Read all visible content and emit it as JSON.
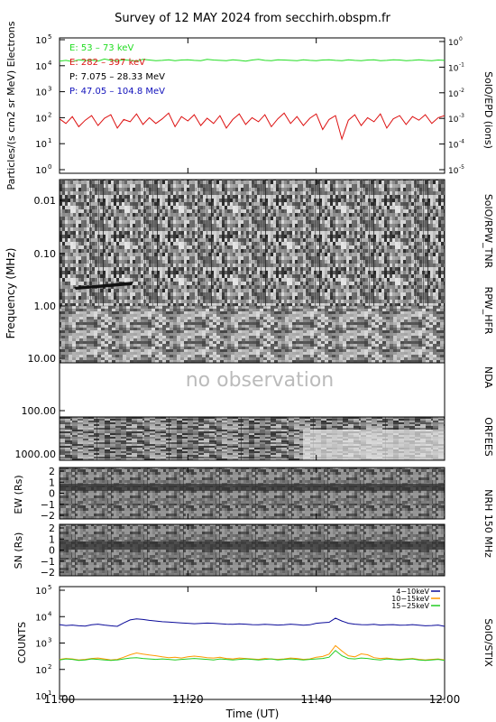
{
  "title": "Survey of 12 MAY 2024 from secchirh.obspm.fr",
  "colors": {
    "electrons_low": "#22dd22",
    "electrons_high": "#dd1111",
    "protons_low": "#000000",
    "protons_high": "#1111bb",
    "stix_low": "#0a0a99",
    "stix_mid": "#ff9900",
    "stix_high": "#22cc22",
    "no_obs": "#bbbbbb"
  },
  "x_axis": {
    "label": "Time (UT)",
    "ticks": [
      "11:00",
      "11:20",
      "11:40",
      "12:00"
    ],
    "range_min": [
      0,
      60
    ]
  },
  "chart_data": [
    {
      "type": "line",
      "panel": "epd",
      "ylabel": "Particles/(s cm2 sr MeV) Electrons",
      "right_label": "SolO/EPD (ions)",
      "ylim": [
        1,
        100000
      ],
      "log": true,
      "yticks_left": [
        "10",
        "10",
        "10",
        "10",
        "10",
        "10"
      ],
      "yticks_left_exp": [
        "0",
        "1",
        "2",
        "3",
        "4",
        "5"
      ],
      "yticks_right": [
        "10",
        "10",
        "10",
        "10",
        "10",
        "10",
        "10"
      ],
      "yticks_right_exp": [
        "-5",
        "-4",
        "-3",
        "-2",
        "-1",
        "0",
        ""
      ],
      "legend": [
        "E: 53 – 73 keV",
        "E: 282 – 397 keV",
        "P: 7.075 – 28.33 MeV",
        "P: 47.05 – 104.8 MeV"
      ],
      "series": [
        {
          "name": "E: 53 – 73 keV",
          "values": [
            15000,
            16000,
            14500,
            17000,
            15500,
            16500,
            15000,
            18000,
            16000,
            15500,
            17000,
            16000,
            15000,
            17500,
            16500,
            15500,
            16000,
            17000,
            15500,
            16500,
            17000,
            16000,
            15500,
            17500,
            16500,
            16000,
            15500,
            17000,
            16000,
            15000,
            16500,
            17500,
            16000,
            15500,
            17000,
            16500,
            16000,
            15500,
            17000,
            16000,
            15500,
            16500,
            17000,
            16000,
            15500,
            17000,
            16000,
            15500,
            16500,
            17000,
            15500,
            16000,
            17000,
            16500,
            15500,
            16000,
            17000,
            16000,
            15500,
            16500,
            16000
          ]
        },
        {
          "name": "E: 282 – 397 keV",
          "values": [
            90,
            60,
            110,
            45,
            80,
            120,
            50,
            95,
            130,
            40,
            85,
            70,
            140,
            55,
            100,
            60,
            90,
            150,
            45,
            110,
            75,
            130,
            50,
            95,
            60,
            120,
            40,
            85,
            140,
            55,
            100,
            70,
            130,
            45,
            90,
            150,
            60,
            110,
            50,
            95,
            140,
            35,
            85,
            120,
            15,
            80,
            130,
            50,
            100,
            70,
            140,
            40,
            90,
            120,
            55,
            110,
            80,
            130,
            60,
            100,
            120
          ]
        }
      ]
    },
    {
      "type": "heatmap",
      "panel": "rpw",
      "ylabel": "Frequency (MHz)",
      "right_labels": [
        "SolO/RPW_TNR",
        "RPW_HFR",
        "NDA",
        "ORFEES"
      ],
      "yticks": [
        "0.01",
        "0.10",
        "1.00",
        "10.00",
        "100.00",
        "1000.00"
      ],
      "annotation": "no observation"
    },
    {
      "type": "heatmap",
      "panel": "nrh_ew",
      "ylabel": "EW (Rs)",
      "yticks": [
        "2",
        "1",
        "0",
        "−1",
        "−2"
      ],
      "right_label": "NRH 150 MHz"
    },
    {
      "type": "heatmap",
      "panel": "nrh_sn",
      "ylabel": "SN (Rs)",
      "yticks": [
        "2",
        "1",
        "0",
        "−1",
        "−2"
      ]
    },
    {
      "type": "line",
      "panel": "stix",
      "ylabel": "COUNTS",
      "right_label": "SolO/STIX",
      "ylim": [
        10,
        100000
      ],
      "log": true,
      "yticks": [
        "10",
        "10",
        "10",
        "10",
        "10"
      ],
      "yticks_exp": [
        "1",
        "2",
        "3",
        "4",
        "5"
      ],
      "legend": [
        "4−10keV",
        "10−15keV",
        "15−25keV"
      ],
      "series": [
        {
          "name": "4−10keV",
          "values": [
            5000,
            4600,
            4800,
            4500,
            4400,
            4900,
            5200,
            4800,
            4500,
            4300,
            5800,
            7500,
            8200,
            7800,
            7200,
            6800,
            6400,
            6200,
            6000,
            5800,
            5600,
            5400,
            5500,
            5700,
            5600,
            5400,
            5200,
            5100,
            5300,
            5200,
            5000,
            4900,
            5100,
            5000,
            4800,
            4900,
            5200,
            5000,
            4700,
            4900,
            5600,
            5900,
            6100,
            8800,
            6800,
            5600,
            5200,
            5000,
            4900,
            5100,
            4800,
            4900,
            5000,
            4700,
            4800,
            5000,
            4700,
            4500,
            4600,
            4800,
            4300
          ]
        },
        {
          "name": "10−15keV",
          "values": [
            240,
            260,
            250,
            230,
            240,
            260,
            270,
            250,
            230,
            240,
            290,
            360,
            420,
            380,
            350,
            330,
            300,
            280,
            290,
            270,
            300,
            320,
            300,
            280,
            270,
            290,
            260,
            250,
            270,
            260,
            250,
            240,
            260,
            250,
            240,
            250,
            270,
            260,
            240,
            250,
            290,
            310,
            380,
            800,
            500,
            330,
            300,
            390,
            360,
            280,
            260,
            270,
            250,
            240,
            250,
            260,
            240,
            230,
            240,
            250,
            230
          ]
        },
        {
          "name": "15−25keV",
          "values": [
            230,
            250,
            240,
            220,
            230,
            250,
            240,
            230,
            220,
            230,
            250,
            270,
            280,
            260,
            250,
            240,
            250,
            240,
            230,
            240,
            250,
            260,
            250,
            240,
            230,
            250,
            240,
            230,
            240,
            250,
            240,
            230,
            240,
            250,
            230,
            240,
            250,
            240,
            230,
            240,
            250,
            260,
            290,
            520,
            330,
            260,
            250,
            270,
            260,
            240,
            230,
            250,
            240,
            230,
            240,
            250,
            230,
            220,
            230,
            240,
            220
          ]
        }
      ]
    }
  ]
}
